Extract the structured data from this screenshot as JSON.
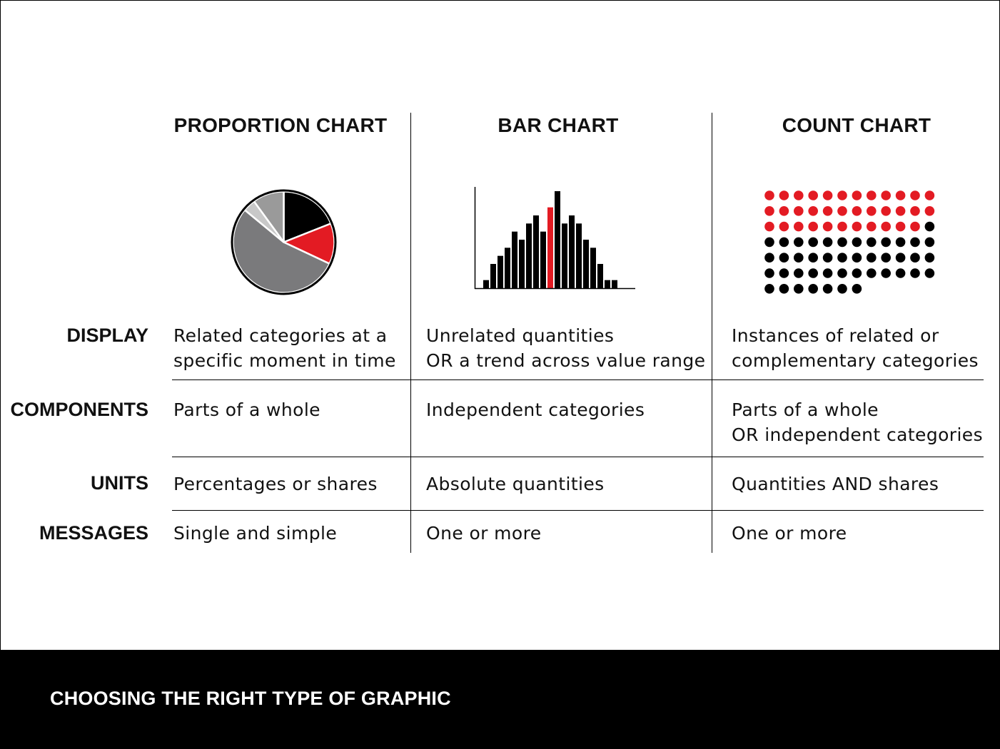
{
  "columns": [
    {
      "title": "PROPORTION CHART"
    },
    {
      "title": "BAR CHART"
    },
    {
      "title": "COUNT CHART"
    }
  ],
  "rows": [
    {
      "label": "DISPLAY",
      "cells": [
        [
          "Related categories at a",
          "specific moment in time"
        ],
        [
          "Unrelated quantities",
          "OR a trend across value range"
        ],
        [
          "Instances of related or",
          "complementary categories"
        ]
      ]
    },
    {
      "label": "COMPONENTS",
      "cells": [
        [
          "Parts of a whole"
        ],
        [
          "Independent categories"
        ],
        [
          "Parts of a whole",
          "OR independent categories"
        ]
      ]
    },
    {
      "label": "UNITS",
      "cells": [
        [
          "Percentages or shares"
        ],
        [
          "Absolute quantities"
        ],
        [
          "Quantities AND shares"
        ]
      ]
    },
    {
      "label": "MESSAGES",
      "cells": [
        [
          "Single and simple"
        ],
        [
          "One or more"
        ],
        [
          "One or more"
        ]
      ]
    }
  ],
  "footer": {
    "title": "CHOOSING THE RIGHT TYPE OF GRAPHIC"
  },
  "colors": {
    "accent": "#e31b23",
    "black": "#000000",
    "dark_gray": "#7a7a7c",
    "light_gray": "#c8c8c8",
    "mid_gray": "#9a9a9a"
  },
  "icons": {
    "pie": {
      "name": "pie-chart-icon",
      "slices": [
        {
          "share": 0.19,
          "color": "#000000"
        },
        {
          "share": 0.13,
          "color": "#e31b23"
        },
        {
          "share": 0.54,
          "color": "#7a7a7c"
        },
        {
          "share": 0.04,
          "color": "#c8c8c8"
        },
        {
          "share": 0.1,
          "color": "#9a9a9a"
        }
      ]
    },
    "bars": {
      "name": "histogram-icon",
      "values": [
        1,
        3,
        4,
        5,
        7,
        6,
        8,
        9,
        7,
        10,
        12,
        8,
        9,
        8,
        6,
        5,
        3,
        1,
        1
      ],
      "highlight_index": 9
    },
    "dots": {
      "name": "dot-matrix-icon",
      "red": 35,
      "black": 44
    }
  }
}
